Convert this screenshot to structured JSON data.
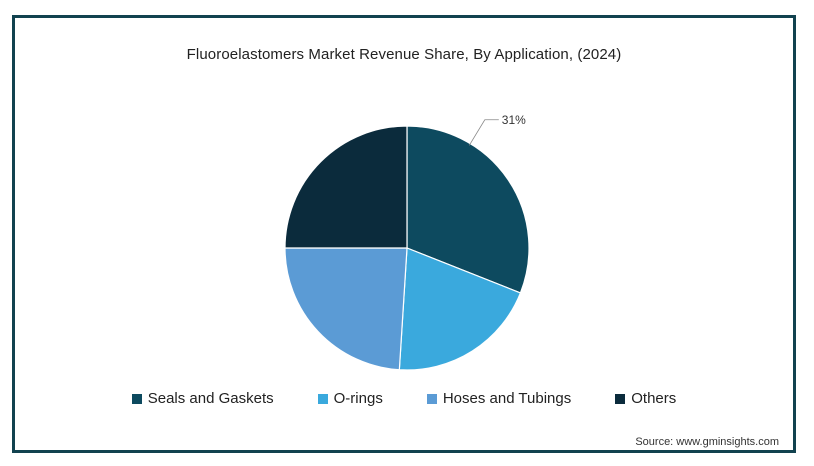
{
  "chart_data": {
    "type": "pie",
    "title": "Fluoroelastomers  Market Revenue Share, By  Application,  (2024)",
    "slices": [
      {
        "name": "Seals and Gaskets",
        "value": 31,
        "label": "31%",
        "color": "#0d4a5f"
      },
      {
        "name": "O-rings",
        "value": 20,
        "label": "",
        "color": "#3aa9dd"
      },
      {
        "name": "Hoses and Tubings",
        "value": 24,
        "label": "",
        "color": "#5b9bd5"
      },
      {
        "name": "Others",
        "value": 25,
        "label": "",
        "color": "#0b2b3c"
      }
    ],
    "legend_position": "bottom"
  },
  "source": "Source: www.gminsights.com"
}
